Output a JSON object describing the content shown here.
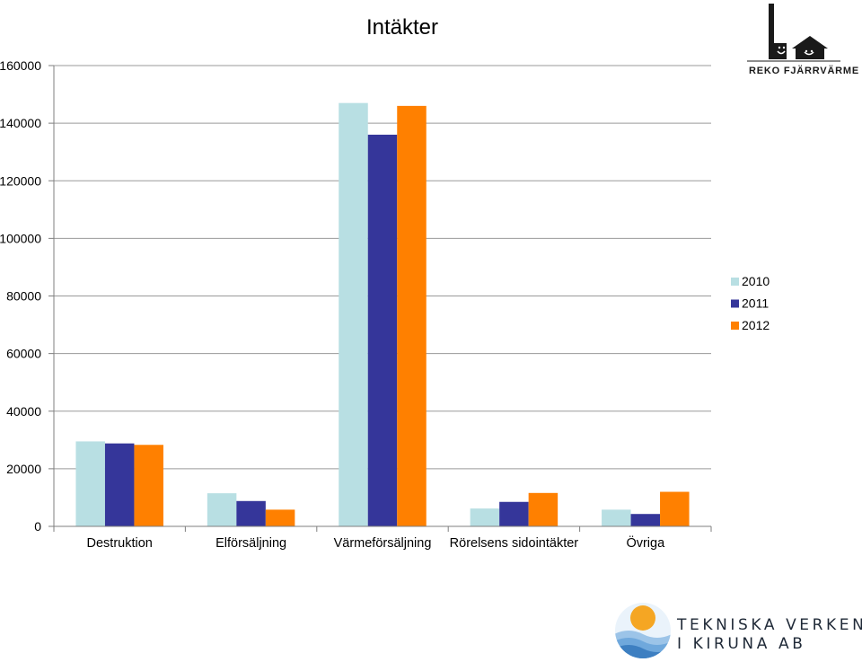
{
  "chart_data": {
    "type": "bar",
    "title": "Intäkter",
    "categories": [
      "Destruktion",
      "Elförsäljning",
      "Värmeförsäljning",
      "Rörelsens sidointäkter",
      "Övriga"
    ],
    "series": [
      {
        "name": "2010",
        "color": "#b8dfe3",
        "values": [
          29500,
          11500,
          147000,
          6200,
          5800
        ]
      },
      {
        "name": "2011",
        "color": "#35369a",
        "values": [
          28800,
          8800,
          136000,
          8500,
          4300
        ]
      },
      {
        "name": "2012",
        "color": "#ff8000",
        "values": [
          28300,
          5800,
          146000,
          11600,
          12000
        ]
      }
    ],
    "ylim": [
      0,
      160000
    ],
    "yticks": [
      0,
      20000,
      40000,
      60000,
      80000,
      100000,
      120000,
      140000,
      160000
    ],
    "ytick_labels": [
      "0",
      "20000",
      "40000",
      "60000",
      "80000",
      "100000",
      "120000",
      "140000",
      "160000"
    ],
    "xlabel": "",
    "ylabel": "",
    "grid": true,
    "legend_position": "right"
  },
  "logos": {
    "reko": {
      "text": "REKO FJÄRRVÄRME",
      "icon": "chimney-house-icon"
    },
    "tekniska": {
      "line1": "TEKNISKA VERKEN",
      "line2": "I KIRUNA AB",
      "icon": "sun-waves-icon",
      "colors": {
        "sun": "#f5a623",
        "wave": "#6fa8dc"
      }
    }
  }
}
